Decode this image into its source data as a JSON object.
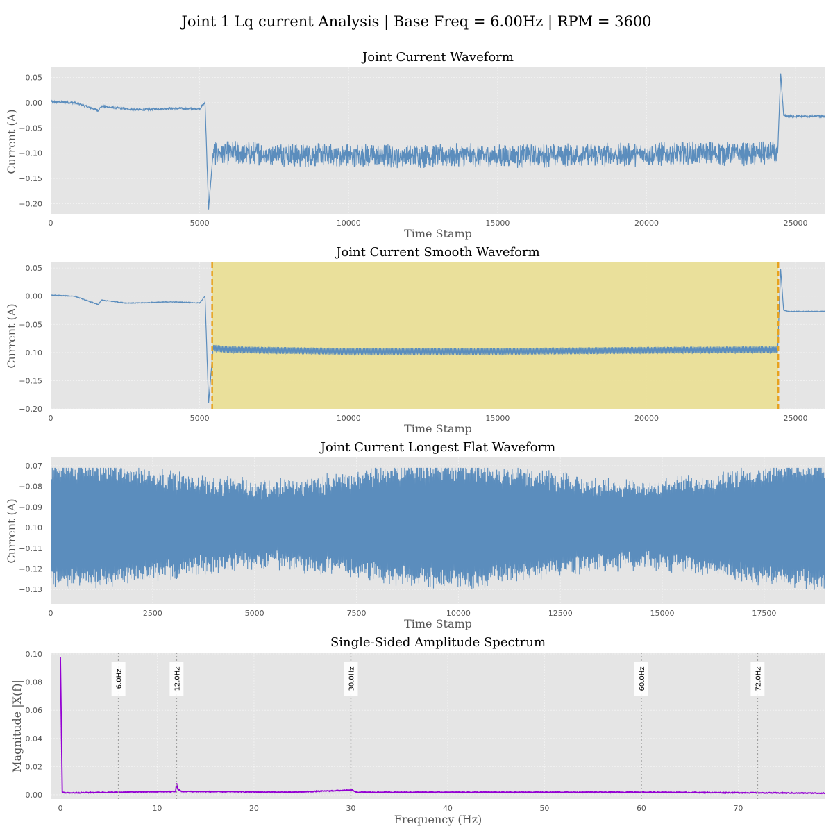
{
  "figure_title": "Joint 1 Lq current Analysis | Base Freq = 6.00Hz | RPM = 3600",
  "colors": {
    "plot_bg": "#e5e5e5",
    "signal": "#5b8dbd",
    "highlight": "#eadf97",
    "boundary": "#e8a21e",
    "spectrum": "#9400d3",
    "harmonic_line": "#a0a0a0"
  },
  "chart_data": [
    {
      "type": "line",
      "title": "Joint Current Waveform",
      "xlabel": "Time Stamp",
      "ylabel": "Current (A)",
      "xlim": [
        0,
        26000
      ],
      "ylim": [
        -0.22,
        0.07
      ],
      "xticks": [
        0,
        5000,
        10000,
        15000,
        20000,
        25000
      ],
      "yticks": [
        0.05,
        0.0,
        -0.05,
        -0.1,
        -0.15,
        -0.2
      ],
      "ytick_labels": [
        "0.05",
        "0.00",
        "−0.05",
        "−0.10",
        "−0.15",
        "−0.20"
      ],
      "grid": true,
      "series": [
        {
          "x": [
            0,
            800,
            1600,
            1700,
            2500,
            3000,
            4000,
            5000,
            5180,
            5300,
            5450,
            6000,
            10000,
            15000,
            20000,
            24400,
            24500,
            24600,
            24800,
            26000
          ],
          "y": [
            0.002,
            0.0,
            -0.015,
            -0.007,
            -0.012,
            -0.014,
            -0.011,
            -0.012,
            0.0,
            -0.21,
            -0.1,
            -0.1,
            -0.105,
            -0.105,
            -0.102,
            -0.1,
            0.058,
            -0.025,
            -0.027,
            -0.027
          ]
        }
      ]
    },
    {
      "type": "line",
      "title": "Joint Current Smooth Waveform",
      "xlabel": "Time Stamp",
      "ylabel": "Current (A)",
      "xlim": [
        0,
        26000
      ],
      "ylim": [
        -0.2,
        0.06
      ],
      "xticks": [
        0,
        5000,
        10000,
        15000,
        20000,
        25000
      ],
      "yticks": [
        0.05,
        0.0,
        -0.05,
        -0.1,
        -0.15,
        -0.2
      ],
      "ytick_labels": [
        "0.05",
        "0.00",
        "−0.05",
        "−0.10",
        "−0.15",
        "−0.20"
      ],
      "grid": true,
      "highlight_span": [
        5420,
        24420
      ],
      "series": [
        {
          "x": [
            0,
            800,
            1600,
            1700,
            2500,
            3000,
            4000,
            5000,
            5180,
            5300,
            5450,
            6000,
            10000,
            15000,
            20000,
            24400,
            24500,
            24600,
            24800,
            26000
          ],
          "y": [
            0.002,
            0.0,
            -0.015,
            -0.007,
            -0.012,
            -0.012,
            -0.01,
            -0.012,
            0.0,
            -0.19,
            -0.092,
            -0.095,
            -0.098,
            -0.098,
            -0.096,
            -0.095,
            0.048,
            -0.025,
            -0.027,
            -0.027
          ]
        }
      ]
    },
    {
      "type": "line",
      "title": "Joint Current Longest Flat Waveform",
      "xlabel": "Time Stamp",
      "ylabel": "Current (A)",
      "xlim": [
        0,
        19000
      ],
      "ylim": [
        -0.137,
        -0.066
      ],
      "xticks": [
        0,
        2500,
        5000,
        7500,
        10000,
        12500,
        15000,
        17500
      ],
      "yticks": [
        -0.07,
        -0.08,
        -0.09,
        -0.1,
        -0.11,
        -0.12,
        -0.13
      ],
      "ytick_labels": [
        "−0.07",
        "−0.08",
        "−0.09",
        "−0.10",
        "−0.11",
        "−0.12",
        "−0.13"
      ],
      "grid": true,
      "series": [
        {
          "mean": -0.0985,
          "amplitude_range": [
            0.014,
            0.03
          ],
          "y_max_observed": -0.071,
          "y_min_observed": -0.134
        }
      ]
    },
    {
      "type": "line",
      "title": "Single-Sided Amplitude Spectrum",
      "xlabel": "Frequency (Hz)",
      "ylabel": "Magnitude |X(f)|",
      "xlim": [
        -1,
        79
      ],
      "ylim": [
        -0.003,
        0.101
      ],
      "xticks": [
        0,
        10,
        20,
        30,
        40,
        50,
        60,
        70
      ],
      "yticks": [
        0.1,
        0.08,
        0.06,
        0.04,
        0.02,
        0.0
      ],
      "ytick_labels": [
        "0.10",
        "0.08",
        "0.06",
        "0.04",
        "0.02",
        "0.00"
      ],
      "grid": true,
      "harmonics": [
        {
          "freq": 6,
          "label": "6.0Hz"
        },
        {
          "freq": 12,
          "label": "12.0Hz"
        },
        {
          "freq": 30,
          "label": "30.0Hz"
        },
        {
          "freq": 60,
          "label": "60.0Hz"
        },
        {
          "freq": 72,
          "label": "72.0Hz"
        }
      ],
      "series": [
        {
          "x": [
            0,
            0.05,
            0.2,
            0.5,
            6,
            11.9,
            12.0,
            12.1,
            12.5,
            24,
            30.2,
            30.5,
            60.5,
            79
          ],
          "y": [
            0.098,
            0.098,
            0.002,
            0.001,
            0.0015,
            0.002,
            0.008,
            0.004,
            0.002,
            0.0015,
            0.003,
            0.0015,
            0.0015,
            0.0008
          ]
        }
      ]
    }
  ]
}
